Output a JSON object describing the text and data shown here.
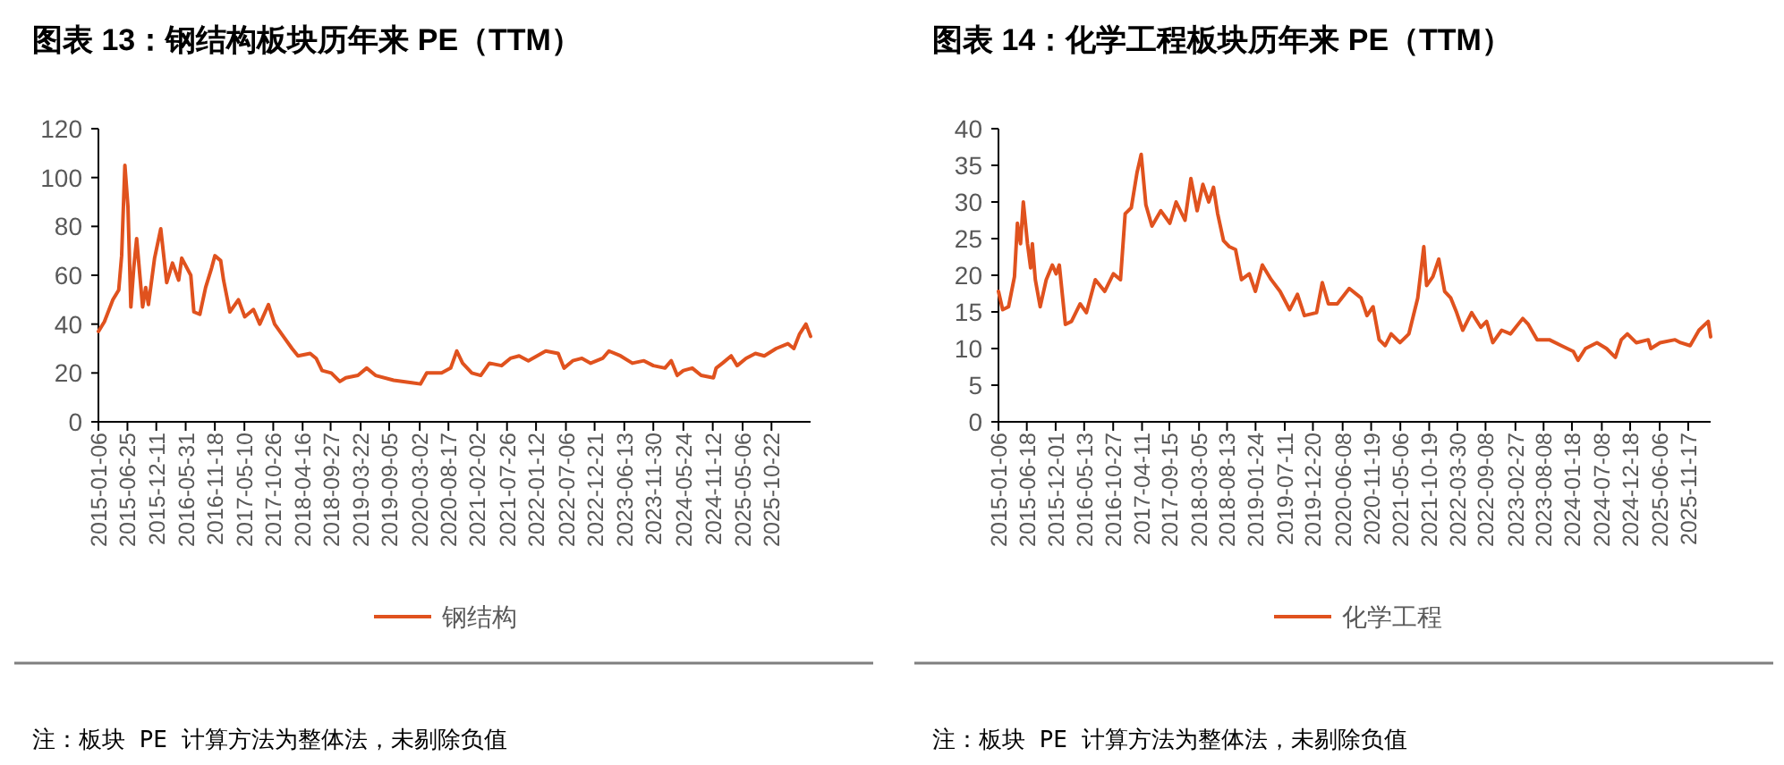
{
  "chart_data": [
    {
      "type": "line",
      "title": "图表 13：钢结构板块历年来 PE（TTM）",
      "legend": "bottom",
      "annotations": [
        "注：板块 PE 计算方法为整体法，未剔除负值"
      ],
      "xlim": [
        "2015-01-06",
        "2026-06-08"
      ],
      "ylim": [
        0,
        120
      ],
      "yticks": [
        0,
        20,
        40,
        60,
        80,
        100,
        120
      ],
      "xticks": [
        "2015-01-06",
        "2015-06-25",
        "2015-12-11",
        "2016-05-31",
        "2016-11-18",
        "2017-05-10",
        "2017-10-26",
        "2018-04-16",
        "2018-09-27",
        "2019-03-22",
        "2019-09-05",
        "2020-03-02",
        "2020-08-17",
        "2021-02-02",
        "2021-07-26",
        "2022-01-12",
        "2022-07-06",
        "2022-12-21",
        "2023-06-13",
        "2023-11-30",
        "2024-05-24",
        "2024-11-12",
        "2025-05-06",
        "2025-10-22"
      ],
      "x": [
        "2015-01-06",
        "2015-02-10",
        "2015-04-01",
        "2015-05-05",
        "2015-05-22",
        "2015-06-10",
        "2015-06-28",
        "2015-07-15",
        "2015-08-01",
        "2015-08-18",
        "2015-09-22",
        "2015-10-10",
        "2015-10-26",
        "2015-12-01",
        "2016-01-06",
        "2016-02-10",
        "2016-03-15",
        "2016-04-20",
        "2016-05-08",
        "2016-06-30",
        "2016-07-18",
        "2016-08-22",
        "2016-09-25",
        "2016-10-30",
        "2016-11-18",
        "2016-12-22",
        "2017-01-08",
        "2017-02-14",
        "2017-04-05",
        "2017-05-12",
        "2017-07-02",
        "2017-08-08",
        "2017-09-28",
        "2017-11-03",
        "2017-12-24",
        "2018-02-13",
        "2018-03-20",
        "2018-05-30",
        "2018-07-04",
        "2018-08-08",
        "2018-10-01",
        "2018-11-20",
        "2018-12-25",
        "2019-03-06",
        "2019-04-26",
        "2019-06-17",
        "2019-10-01",
        "2020-01-15",
        "2020-03-06",
        "2020-04-12",
        "2020-07-08",
        "2020-08-30",
        "2020-10-05",
        "2020-11-08",
        "2021-01-01",
        "2021-02-22",
        "2021-04-14",
        "2021-06-24",
        "2021-08-15",
        "2021-10-05",
        "2021-11-28",
        "2022-01-18",
        "2022-03-10",
        "2022-05-22",
        "2022-06-25",
        "2022-08-15",
        "2022-10-08",
        "2022-11-28",
        "2023-02-06",
        "2023-03-15",
        "2023-05-22",
        "2023-07-30",
        "2023-10-06",
        "2023-11-30",
        "2024-02-06",
        "2024-03-14",
        "2024-04-18",
        "2024-05-24",
        "2024-07-15",
        "2024-09-05",
        "2024-11-16",
        "2024-12-02",
        "2025-01-08",
        "2025-02-28",
        "2025-04-04",
        "2025-05-26",
        "2025-07-20",
        "2025-09-10",
        "2025-11-18",
        "2026-01-26",
        "2026-03-02",
        "2026-04-05",
        "2026-05-12",
        "2026-06-08"
      ],
      "series": [
        {
          "name": "钢结构",
          "color": "#e0521e",
          "values": [
            37,
            41,
            50,
            54,
            68,
            105,
            88,
            47,
            63,
            75,
            47,
            55,
            48,
            67,
            79,
            57,
            65,
            58,
            67,
            60,
            45,
            44,
            55,
            63,
            68,
            66,
            58,
            45,
            50,
            43,
            46,
            40,
            48,
            40,
            35,
            30,
            27,
            28,
            26,
            21,
            20,
            16.5,
            18,
            19,
            22,
            19,
            17,
            16,
            15.5,
            20,
            20,
            22,
            29,
            24,
            20,
            19,
            24,
            23,
            26,
            27,
            25,
            27,
            29,
            28,
            22,
            25,
            26,
            24,
            26,
            29,
            27,
            24,
            25,
            23,
            22,
            25,
            19,
            21,
            22,
            19,
            18,
            22,
            24,
            27,
            23,
            26,
            28,
            27,
            30,
            32,
            30,
            36,
            40,
            35
          ]
        }
      ]
    },
    {
      "type": "line",
      "title": "图表 14：化学工程板块历年来 PE（TTM）",
      "legend": "bottom",
      "annotations": [
        "注：板块 PE 计算方法为整体法，未剔除负值"
      ],
      "xlim": [
        "2015-01-06",
        "2026-03-26"
      ],
      "ylim": [
        0,
        40
      ],
      "yticks": [
        0,
        5,
        10,
        15,
        20,
        25,
        30,
        35,
        40
      ],
      "xticks": [
        "2015-01-06",
        "2015-06-18",
        "2015-12-01",
        "2016-05-13",
        "2016-10-27",
        "2017-04-11",
        "2017-09-15",
        "2018-03-05",
        "2018-08-13",
        "2019-01-24",
        "2019-07-11",
        "2019-12-20",
        "2020-06-08",
        "2020-11-19",
        "2021-05-06",
        "2021-10-19",
        "2022-03-30",
        "2022-09-08",
        "2023-02-27",
        "2023-08-08",
        "2024-01-18",
        "2024-07-08",
        "2024-12-18",
        "2025-06-06",
        "2025-11-17"
      ],
      "x": [
        "2015-01-06",
        "2015-01-30",
        "2015-03-05",
        "2015-04-08",
        "2015-04-25",
        "2015-05-13",
        "2015-05-29",
        "2015-06-22",
        "2015-07-10",
        "2015-07-20",
        "2015-08-06",
        "2015-09-03",
        "2015-10-08",
        "2015-11-12",
        "2015-12-04",
        "2015-12-22",
        "2016-01-26",
        "2016-03-01",
        "2016-04-20",
        "2016-05-26",
        "2016-07-16",
        "2016-09-08",
        "2016-10-28",
        "2016-12-08",
        "2017-01-04",
        "2017-02-08",
        "2017-03-13",
        "2017-04-06",
        "2017-05-03",
        "2017-06-07",
        "2017-07-28",
        "2017-09-18",
        "2017-10-24",
        "2017-12-14",
        "2018-01-17",
        "2018-02-22",
        "2018-03-27",
        "2018-04-30",
        "2018-05-27",
        "2018-06-20",
        "2018-07-24",
        "2018-08-26",
        "2018-10-01",
        "2018-11-04",
        "2018-12-19",
        "2019-01-23",
        "2019-03-04",
        "2019-04-24",
        "2019-06-14",
        "2019-08-08",
        "2019-09-22",
        "2019-11-01",
        "2020-01-10",
        "2020-02-12",
        "2020-03-18",
        "2020-05-08",
        "2020-07-16",
        "2020-09-22",
        "2020-10-26",
        "2020-11-30",
        "2021-01-04",
        "2021-02-08",
        "2021-03-14",
        "2021-05-04",
        "2021-06-24",
        "2021-08-14",
        "2021-09-18",
        "2021-10-04",
        "2021-11-09",
        "2021-12-13",
        "2022-01-16",
        "2022-02-20",
        "2022-03-26",
        "2022-04-30",
        "2022-06-20",
        "2022-08-12",
        "2022-09-14",
        "2022-10-20",
        "2022-12-10",
        "2023-01-30",
        "2023-04-10",
        "2023-05-12",
        "2023-07-02",
        "2023-09-10",
        "2023-11-18",
        "2024-01-26",
        "2024-02-22",
        "2024-04-05",
        "2024-06-10",
        "2024-08-04",
        "2024-09-24",
        "2024-10-28",
        "2024-12-02",
        "2025-01-22",
        "2025-04-01",
        "2025-04-16",
        "2025-06-08",
        "2025-09-02",
        "2025-10-04",
        "2025-11-28",
        "2026-01-18",
        "2026-03-12",
        "2026-03-26"
      ],
      "series": [
        {
          "name": "化学工程",
          "color": "#e0521e",
          "values": [
            17.8,
            15.3,
            15.7,
            19.8,
            27.1,
            24.3,
            30,
            24.3,
            21,
            24.3,
            19.4,
            15.7,
            19.4,
            21.4,
            20.2,
            21.4,
            13.3,
            13.7,
            16.1,
            14.9,
            19.4,
            17.8,
            20.2,
            19.4,
            28.4,
            29.2,
            34,
            36.5,
            29.6,
            26.7,
            28.8,
            27.1,
            30,
            27.5,
            33.2,
            28.8,
            32.4,
            30,
            32,
            28.4,
            24.7,
            23.9,
            23.5,
            19.4,
            20.2,
            17.8,
            21.4,
            19.4,
            17.8,
            15.3,
            17.4,
            14.5,
            14.9,
            19,
            16.1,
            16.1,
            18.2,
            16.9,
            14.5,
            15.7,
            11.2,
            10.4,
            12,
            10.8,
            12,
            16.9,
            23.9,
            18.6,
            19.8,
            22.2,
            17.8,
            16.9,
            14.9,
            12.5,
            14.9,
            12.9,
            13.7,
            10.8,
            12.5,
            12,
            14.1,
            13.3,
            11.2,
            11.2,
            10.4,
            9.6,
            8.4,
            10,
            10.8,
            10,
            8.8,
            11.2,
            12,
            10.8,
            11.2,
            10,
            10.8,
            11.2,
            10.8,
            10.4,
            12.5,
            13.7,
            11.6
          ]
        }
      ]
    }
  ]
}
